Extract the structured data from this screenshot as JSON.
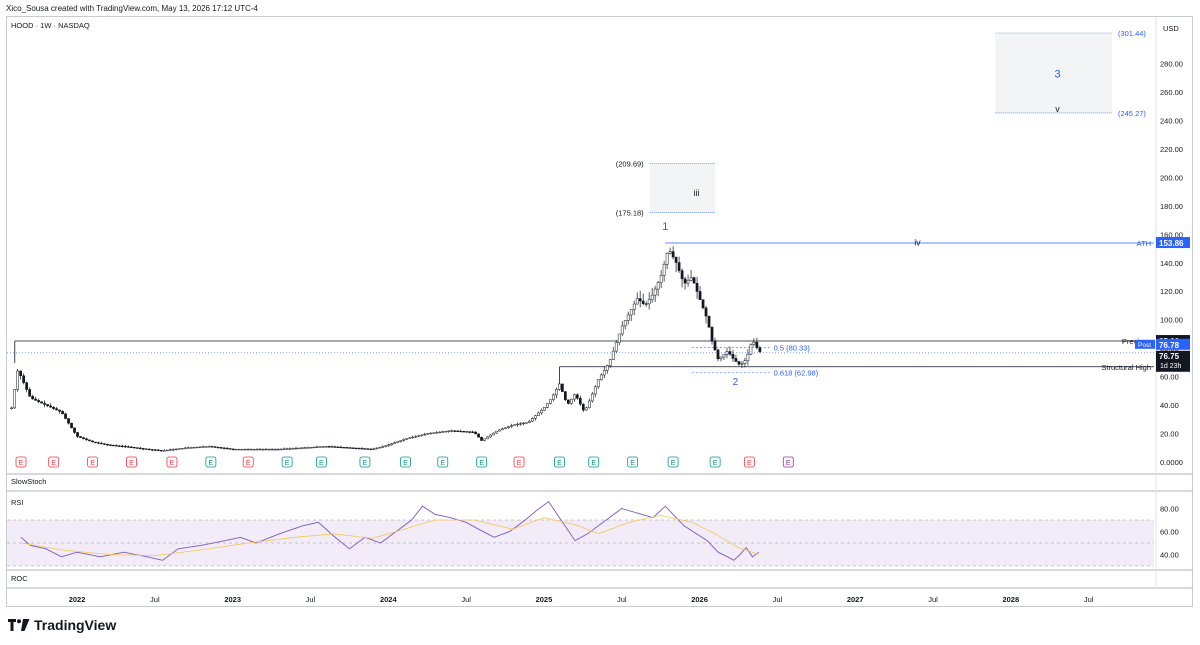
{
  "header": {
    "caption": "Xico_Sousa created with TradingView.com, May 13, 2026 17:12 UTC-4"
  },
  "symbol_line": "HOOD · 1W · NASDAQ",
  "currency": "USD",
  "brand": {
    "name": "TradingView",
    "logo_icon": "tradingview-logo-icon"
  },
  "colors": {
    "up": "#131722",
    "down": "#131722",
    "fib": "#2962ff",
    "ath": "#2962ff",
    "rsi": "#7e57c2",
    "rsi_ma": "#f7c74f",
    "earn_red": "#f23645",
    "earn_green": "#089981",
    "earn_purple": "#9c27b0"
  },
  "panes": {
    "slowstoch": "SlowStoch",
    "rsi": "RSI",
    "roc": "ROC"
  },
  "chart_data": [
    {
      "type": "candlestick",
      "title": "HOOD · 1W · NASDAQ",
      "ylim": [
        0,
        310
      ],
      "y_ticks": [
        "0.0000",
        "20.00",
        "40.00",
        "60.00",
        "80.00",
        "100.00",
        "120.00",
        "140.00",
        "160.00",
        "180.00",
        "200.00",
        "220.00",
        "240.00",
        "260.00",
        "280.00"
      ],
      "y_tick_values": [
        0,
        20,
        40,
        60,
        80,
        100,
        120,
        140,
        160,
        180,
        200,
        220,
        240,
        260,
        280
      ],
      "x_ticks": [
        {
          "label": "2022",
          "t": 2022.0,
          "bold": true
        },
        {
          "label": "Jul",
          "t": 2022.5,
          "bold": false
        },
        {
          "label": "2023",
          "t": 2023.0,
          "bold": true
        },
        {
          "label": "Jul",
          "t": 2023.5,
          "bold": false
        },
        {
          "label": "2024",
          "t": 2024.0,
          "bold": true
        },
        {
          "label": "Jul",
          "t": 2024.5,
          "bold": false
        },
        {
          "label": "2025",
          "t": 2025.0,
          "bold": true
        },
        {
          "label": "Jul",
          "t": 2025.5,
          "bold": false
        },
        {
          "label": "2026",
          "t": 2026.0,
          "bold": true
        },
        {
          "label": "Jul",
          "t": 2026.5,
          "bold": false
        },
        {
          "label": "2027",
          "t": 2027.0,
          "bold": true
        },
        {
          "label": "Jul",
          "t": 2027.5,
          "bold": false
        },
        {
          "label": "2028",
          "t": 2028.0,
          "bold": true
        },
        {
          "label": "Jul",
          "t": 2028.5,
          "bold": false
        }
      ],
      "price_path": [
        [
          2021.58,
          38
        ],
        [
          2021.62,
          65
        ],
        [
          2021.7,
          45
        ],
        [
          2021.8,
          40
        ],
        [
          2021.9,
          35
        ],
        [
          2022.0,
          18
        ],
        [
          2022.1,
          14
        ],
        [
          2022.2,
          12
        ],
        [
          2022.3,
          11
        ],
        [
          2022.45,
          9
        ],
        [
          2022.55,
          8
        ],
        [
          2022.7,
          10
        ],
        [
          2022.85,
          11
        ],
        [
          2023.0,
          9
        ],
        [
          2023.15,
          9
        ],
        [
          2023.3,
          9
        ],
        [
          2023.45,
          10
        ],
        [
          2023.6,
          11
        ],
        [
          2023.75,
          10
        ],
        [
          2023.9,
          9
        ],
        [
          2024.0,
          12
        ],
        [
          2024.1,
          16
        ],
        [
          2024.25,
          20
        ],
        [
          2024.4,
          22
        ],
        [
          2024.55,
          21
        ],
        [
          2024.6,
          15
        ],
        [
          2024.7,
          22
        ],
        [
          2024.8,
          26
        ],
        [
          2024.9,
          28
        ],
        [
          2025.0,
          38
        ],
        [
          2025.05,
          45
        ],
        [
          2025.1,
          55
        ],
        [
          2025.15,
          40
        ],
        [
          2025.2,
          48
        ],
        [
          2025.26,
          35
        ],
        [
          2025.3,
          45
        ],
        [
          2025.35,
          58
        ],
        [
          2025.42,
          70
        ],
        [
          2025.5,
          95
        ],
        [
          2025.55,
          105
        ],
        [
          2025.6,
          115
        ],
        [
          2025.65,
          110
        ],
        [
          2025.7,
          118
        ],
        [
          2025.75,
          130
        ],
        [
          2025.8,
          150
        ],
        [
          2025.85,
          140
        ],
        [
          2025.9,
          125
        ],
        [
          2025.95,
          130
        ],
        [
          2026.0,
          115
        ],
        [
          2026.05,
          100
        ],
        [
          2026.08,
          85
        ],
        [
          2026.12,
          72
        ],
        [
          2026.18,
          78
        ],
        [
          2026.22,
          72
        ],
        [
          2026.26,
          68
        ],
        [
          2026.3,
          72
        ],
        [
          2026.34,
          86
        ],
        [
          2026.38,
          78
        ],
        [
          2026.4,
          76.75
        ]
      ],
      "annotations": [
        {
          "text": "1",
          "t": 2025.78,
          "y": 163,
          "color": "#2962ff",
          "size": 11
        },
        {
          "text": "2",
          "t": 2026.23,
          "y": 54,
          "color": "#2962ff",
          "size": 10
        },
        {
          "text": "iii",
          "t": 2025.98,
          "y": 187,
          "color": "#131722",
          "size": 9
        },
        {
          "text": "iv",
          "t": 2027.4,
          "y": 152,
          "color": "#131722",
          "size": 9
        },
        {
          "text": "3",
          "t": 2028.3,
          "y": 270,
          "color": "#2962ff",
          "size": 11
        },
        {
          "text": "v",
          "t": 2028.3,
          "y": 246,
          "color": "#131722",
          "size": 9
        }
      ],
      "boxes": [
        {
          "name": "wave-iii-zone",
          "t1": 2025.68,
          "t2": 2026.1,
          "y1": 175.18,
          "y2": 209.69,
          "top_label": "(209.69)",
          "bottom_label": "(175.18)"
        },
        {
          "name": "wave-3-zone",
          "t1": 2027.9,
          "t2": 2028.65,
          "y1": 245.27,
          "y2": 301.44,
          "top_label": "(301.44)",
          "bottom_label": "(245.27)"
        }
      ],
      "levels": [
        {
          "name": "ath",
          "label": "ATH",
          "value": 153.86,
          "tag": "153.86",
          "color": "#2962ff",
          "t1": 2025.78
        },
        {
          "name": "previous",
          "label": "Previous",
          "value": 85.0,
          "tag": "85.00",
          "color": "#131722",
          "t1": 2021.6
        },
        {
          "name": "structural-high",
          "label": "Structural High",
          "value": 66.91,
          "tag": "66.91",
          "color": "#131722",
          "t1": 2025.1
        }
      ],
      "fib_levels": [
        {
          "label": "0.5 (80.33)",
          "value": 80.33
        },
        {
          "label": "0.618 (62.98)",
          "value": 62.98
        }
      ],
      "last_price": {
        "value": 76.75,
        "tag": "76.75",
        "countdown": "1d 23h",
        "post_label": "Post",
        "post_value": "76.78"
      },
      "earnings_markers": [
        {
          "t": 2021.64,
          "kind": "E",
          "color": "red"
        },
        {
          "t": 2021.85,
          "kind": "E",
          "color": "red"
        },
        {
          "t": 2022.1,
          "kind": "E",
          "color": "red"
        },
        {
          "t": 2022.35,
          "kind": "E",
          "color": "red"
        },
        {
          "t": 2022.61,
          "kind": "E",
          "color": "red"
        },
        {
          "t": 2022.86,
          "kind": "E",
          "color": "green"
        },
        {
          "t": 2023.1,
          "kind": "E",
          "color": "red"
        },
        {
          "t": 2023.35,
          "kind": "E",
          "color": "green"
        },
        {
          "t": 2023.57,
          "kind": "E",
          "color": "green"
        },
        {
          "t": 2023.85,
          "kind": "E",
          "color": "green"
        },
        {
          "t": 2024.11,
          "kind": "E",
          "color": "green"
        },
        {
          "t": 2024.35,
          "kind": "E",
          "color": "green"
        },
        {
          "t": 2024.6,
          "kind": "E",
          "color": "green"
        },
        {
          "t": 2024.84,
          "kind": "E",
          "color": "red"
        },
        {
          "t": 2025.1,
          "kind": "E",
          "color": "green"
        },
        {
          "t": 2025.32,
          "kind": "E",
          "color": "green"
        },
        {
          "t": 2025.57,
          "kind": "E",
          "color": "green"
        },
        {
          "t": 2025.83,
          "kind": "E",
          "color": "green"
        },
        {
          "t": 2026.1,
          "kind": "E",
          "color": "green"
        },
        {
          "t": 2026.32,
          "kind": "E",
          "color": "red"
        },
        {
          "t": 2026.57,
          "kind": "E",
          "color": "purple"
        }
      ]
    },
    {
      "type": "line",
      "title": "RSI",
      "ylim": [
        30,
        90
      ],
      "y_ticks": [
        "40.00",
        "60.00",
        "80.00"
      ],
      "y_tick_values": [
        40,
        60,
        80
      ],
      "bands": [
        70,
        50,
        30
      ],
      "series": [
        {
          "name": "",
          "color": "#7e57c2",
          "values": [
            [
              2021.64,
              55
            ],
            [
              2021.7,
              48
            ],
            [
              2021.8,
              45
            ],
            [
              2021.9,
              38
            ],
            [
              2022.0,
              42
            ],
            [
              2022.15,
              38
            ],
            [
              2022.3,
              42
            ],
            [
              2022.45,
              38
            ],
            [
              2022.55,
              35
            ],
            [
              2022.65,
              45
            ],
            [
              2022.8,
              48
            ],
            [
              2022.95,
              52
            ],
            [
              2023.05,
              55
            ],
            [
              2023.15,
              50
            ],
            [
              2023.3,
              58
            ],
            [
              2023.45,
              65
            ],
            [
              2023.55,
              68
            ],
            [
              2023.65,
              56
            ],
            [
              2023.75,
              45
            ],
            [
              2023.85,
              55
            ],
            [
              2023.95,
              50
            ],
            [
              2024.05,
              60
            ],
            [
              2024.15,
              70
            ],
            [
              2024.22,
              82
            ],
            [
              2024.3,
              75
            ],
            [
              2024.4,
              72
            ],
            [
              2024.5,
              68
            ],
            [
              2024.58,
              62
            ],
            [
              2024.68,
              55
            ],
            [
              2024.78,
              60
            ],
            [
              2024.88,
              70
            ],
            [
              2024.95,
              78
            ],
            [
              2025.03,
              86
            ],
            [
              2025.1,
              72
            ],
            [
              2025.2,
              52
            ],
            [
              2025.28,
              58
            ],
            [
              2025.4,
              70
            ],
            [
              2025.5,
              80
            ],
            [
              2025.6,
              76
            ],
            [
              2025.7,
              72
            ],
            [
              2025.78,
              82
            ],
            [
              2025.85,
              72
            ],
            [
              2025.9,
              65
            ],
            [
              2025.98,
              58
            ],
            [
              2026.05,
              52
            ],
            [
              2026.12,
              42
            ],
            [
              2026.18,
              38
            ],
            [
              2026.22,
              35
            ],
            [
              2026.26,
              40
            ],
            [
              2026.3,
              46
            ],
            [
              2026.34,
              38
            ],
            [
              2026.38,
              42
            ]
          ]
        },
        {
          "name": "",
          "color": "#f7c74f",
          "values": [
            [
              2021.64,
              50
            ],
            [
              2021.9,
              44
            ],
            [
              2022.2,
              40
            ],
            [
              2022.5,
              39
            ],
            [
              2022.8,
              44
            ],
            [
              2023.1,
              50
            ],
            [
              2023.4,
              55
            ],
            [
              2023.65,
              58
            ],
            [
              2023.9,
              54
            ],
            [
              2024.1,
              62
            ],
            [
              2024.3,
              70
            ],
            [
              2024.55,
              70
            ],
            [
              2024.8,
              62
            ],
            [
              2025.0,
              72
            ],
            [
              2025.2,
              66
            ],
            [
              2025.35,
              58
            ],
            [
              2025.55,
              68
            ],
            [
              2025.75,
              74
            ],
            [
              2025.95,
              68
            ],
            [
              2026.1,
              58
            ],
            [
              2026.25,
              46
            ],
            [
              2026.38,
              40
            ]
          ]
        }
      ]
    }
  ]
}
